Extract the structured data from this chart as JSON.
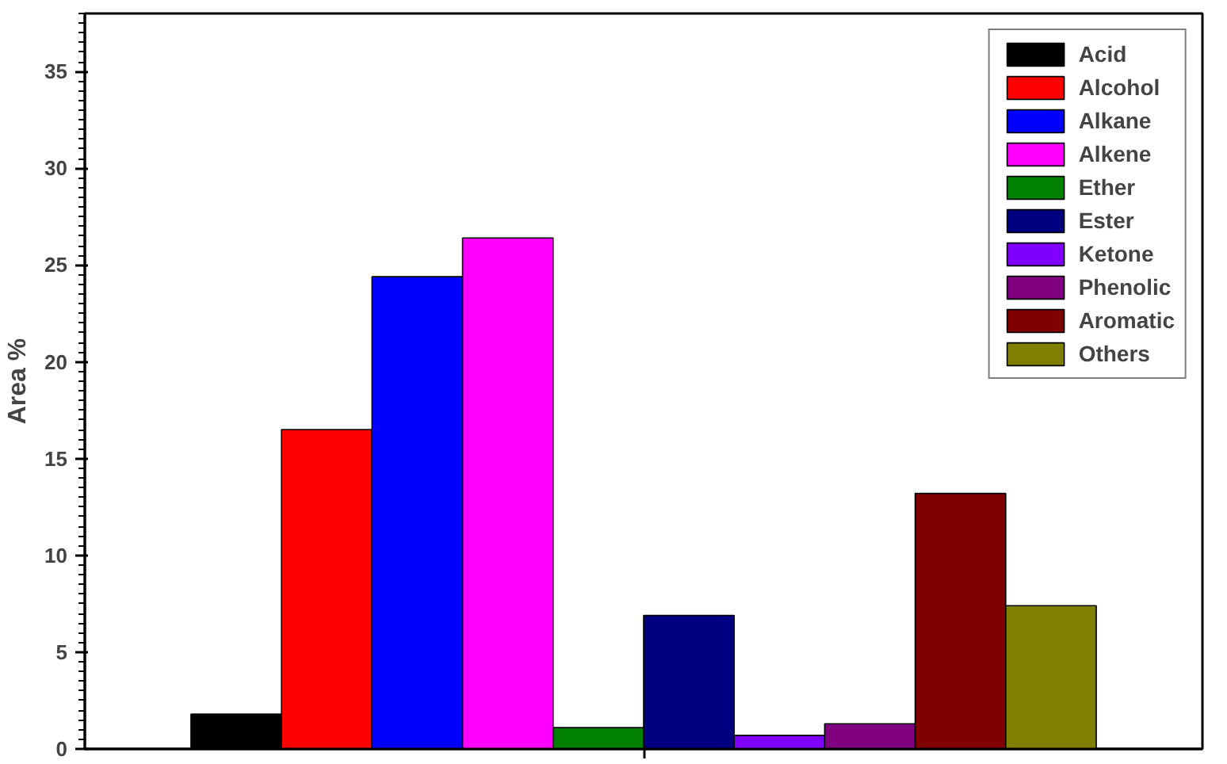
{
  "chart_data": {
    "type": "bar",
    "ylabel": "Area %",
    "categories": [
      null
    ],
    "series": [
      {
        "name": "Acid",
        "color": "#000000",
        "values": [
          1.8
        ]
      },
      {
        "name": "Alcohol",
        "color": "#ff0000",
        "values": [
          16.5
        ]
      },
      {
        "name": "Alkane",
        "color": "#0000ff",
        "values": [
          24.4
        ]
      },
      {
        "name": "Alkene",
        "color": "#ff00ff",
        "values": [
          26.4
        ]
      },
      {
        "name": "Ether",
        "color": "#008000",
        "values": [
          1.1
        ]
      },
      {
        "name": "Ester",
        "color": "#000080",
        "values": [
          6.9
        ]
      },
      {
        "name": "Ketone",
        "color": "#8000ff",
        "values": [
          0.7
        ]
      },
      {
        "name": "Phenolic",
        "color": "#800080",
        "values": [
          1.3
        ]
      },
      {
        "name": "Aromatic",
        "color": "#800000",
        "values": [
          13.2
        ]
      },
      {
        "name": "Others",
        "color": "#808000",
        "values": [
          7.4
        ]
      }
    ],
    "ylim": [
      0,
      38
    ],
    "yticks": [
      0,
      5,
      10,
      15,
      20,
      25,
      30,
      35
    ],
    "grid": false,
    "legend": "top right"
  }
}
